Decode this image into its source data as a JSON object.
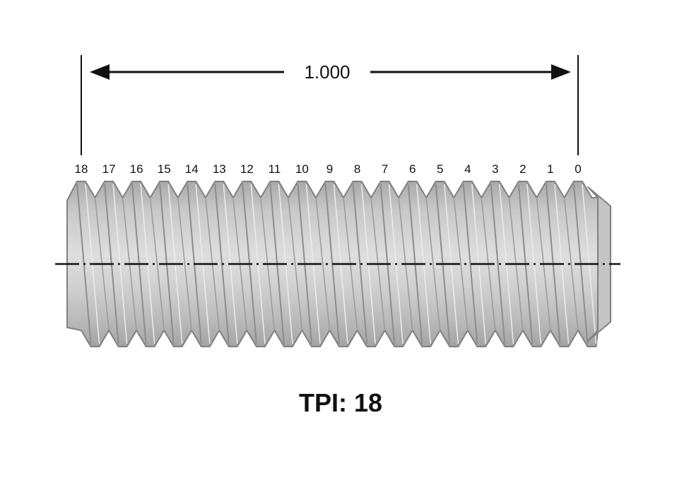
{
  "dimension": {
    "label": "1.000"
  },
  "thread_numbers": [
    "18",
    "17",
    "16",
    "15",
    "14",
    "13",
    "12",
    "11",
    "10",
    "9",
    "8",
    "7",
    "6",
    "5",
    "4",
    "3",
    "2",
    "1",
    "0"
  ],
  "caption": {
    "prefix": "TPI:",
    "value": "18"
  },
  "colors": {
    "ink": "#111111",
    "metal_light": "#d6d6d6",
    "metal_mid": "#bdbdbd",
    "metal_dark": "#9c9c9c",
    "outline": "#7a7a7a",
    "background": "#ffffff"
  }
}
